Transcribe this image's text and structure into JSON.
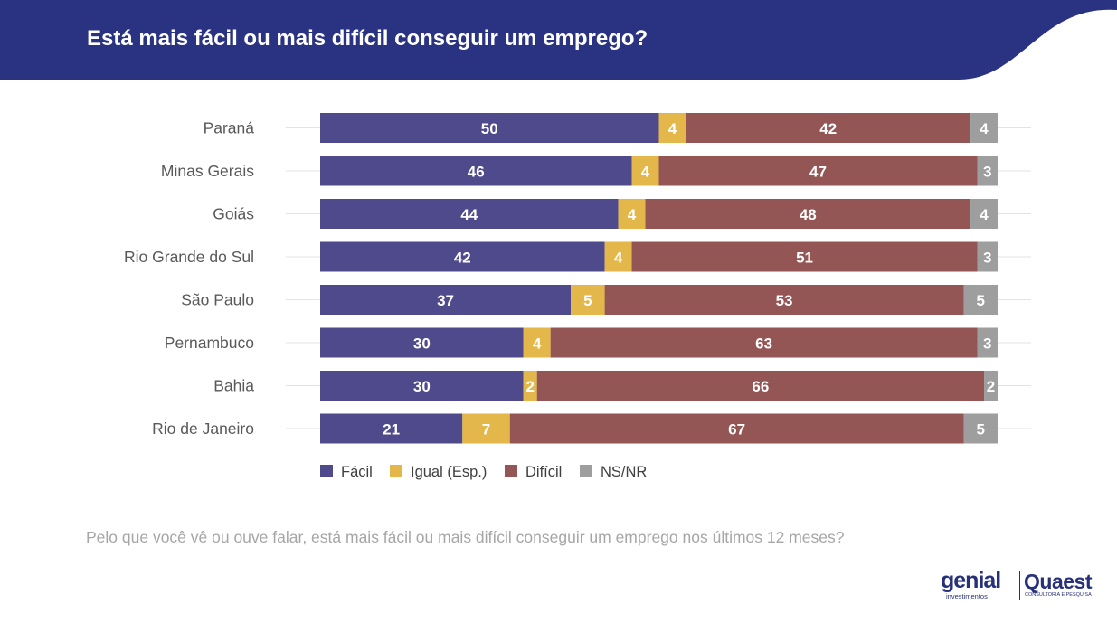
{
  "header": {
    "title": "Está mais fácil ou mais difícil conseguir um emprego?",
    "background_color": "#2a3382"
  },
  "chart_data": {
    "type": "bar",
    "orientation": "horizontal",
    "stacked": true,
    "percent_scale": true,
    "categories": [
      "Paraná",
      "Minas Gerais",
      "Goiás",
      "Rio Grande do Sul",
      "São Paulo",
      "Pernambuco",
      "Bahia",
      "Rio de Janeiro"
    ],
    "series": [
      {
        "name": "Fácil",
        "color": "#4f4a8c",
        "values": [
          50,
          46,
          44,
          42,
          37,
          30,
          30,
          21
        ]
      },
      {
        "name": "Igual (Esp.)",
        "color": "#e3b74a",
        "values": [
          4,
          4,
          4,
          4,
          5,
          4,
          2,
          7
        ]
      },
      {
        "name": "Difícil",
        "color": "#935654",
        "values": [
          42,
          47,
          48,
          51,
          53,
          63,
          66,
          67
        ]
      },
      {
        "name": "NS/NR",
        "color": "#9e9e9e",
        "values": [
          4,
          3,
          4,
          3,
          5,
          3,
          2,
          5
        ]
      }
    ],
    "legend_position": "bottom",
    "grid": false
  },
  "footer": {
    "question": "Pelo que você vê ou ouve falar, está mais fácil ou mais difícil conseguir um emprego nos últimos 12 meses?"
  },
  "logos": {
    "genial": "genial",
    "genial_sub": "investimentos",
    "quaest": "Quaest",
    "quaest_sub": "CONSULTORIA E PESQUISA"
  }
}
